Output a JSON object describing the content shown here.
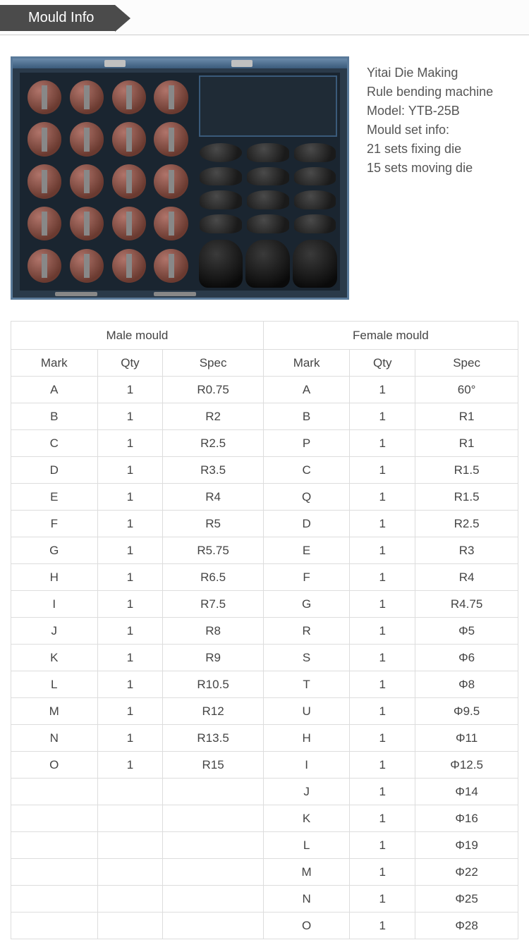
{
  "header": {
    "title": "Mould Info"
  },
  "info": {
    "line1": "Yitai Die Making",
    "line2": "Rule bending machine",
    "line3": "Model: YTB-25B",
    "line4": "Mould set info:",
    "line5": "21 sets fixing die",
    "line6": "15 sets moving die"
  },
  "table": {
    "group_male": "Male mould",
    "group_female": "Female mould",
    "col_mark": "Mark",
    "col_qty": "Qty",
    "col_spec": "Spec",
    "rows": [
      {
        "m_mark": "A",
        "m_qty": "1",
        "m_spec": "R0.75",
        "f_mark": "A",
        "f_qty": "1",
        "f_spec": "60°"
      },
      {
        "m_mark": "B",
        "m_qty": "1",
        "m_spec": "R2",
        "f_mark": "B",
        "f_qty": "1",
        "f_spec": "R1"
      },
      {
        "m_mark": "C",
        "m_qty": "1",
        "m_spec": "R2.5",
        "f_mark": "P",
        "f_qty": "1",
        "f_spec": "R1"
      },
      {
        "m_mark": "D",
        "m_qty": "1",
        "m_spec": "R3.5",
        "f_mark": "C",
        "f_qty": "1",
        "f_spec": "R1.5"
      },
      {
        "m_mark": "E",
        "m_qty": "1",
        "m_spec": "R4",
        "f_mark": "Q",
        "f_qty": "1",
        "f_spec": "R1.5"
      },
      {
        "m_mark": "F",
        "m_qty": "1",
        "m_spec": "R5",
        "f_mark": "D",
        "f_qty": "1",
        "f_spec": "R2.5"
      },
      {
        "m_mark": "G",
        "m_qty": "1",
        "m_spec": "R5.75",
        "f_mark": "E",
        "f_qty": "1",
        "f_spec": "R3"
      },
      {
        "m_mark": "H",
        "m_qty": "1",
        "m_spec": "R6.5",
        "f_mark": "F",
        "f_qty": "1",
        "f_spec": "R4"
      },
      {
        "m_mark": "I",
        "m_qty": "1",
        "m_spec": "R7.5",
        "f_mark": "G",
        "f_qty": "1",
        "f_spec": "R4.75"
      },
      {
        "m_mark": "J",
        "m_qty": "1",
        "m_spec": "R8",
        "f_mark": "R",
        "f_qty": "1",
        "f_spec": "Φ5"
      },
      {
        "m_mark": "K",
        "m_qty": "1",
        "m_spec": "R9",
        "f_mark": "S",
        "f_qty": "1",
        "f_spec": "Φ6"
      },
      {
        "m_mark": "L",
        "m_qty": "1",
        "m_spec": "R10.5",
        "f_mark": "T",
        "f_qty": "1",
        "f_spec": "Φ8"
      },
      {
        "m_mark": "M",
        "m_qty": "1",
        "m_spec": "R12",
        "f_mark": "U",
        "f_qty": "1",
        "f_spec": "Φ9.5"
      },
      {
        "m_mark": "N",
        "m_qty": "1",
        "m_spec": "R13.5",
        "f_mark": "H",
        "f_qty": "1",
        "f_spec": "Φ11"
      },
      {
        "m_mark": "O",
        "m_qty": "1",
        "m_spec": "R15",
        "f_mark": "I",
        "f_qty": "1",
        "f_spec": "Φ12.5"
      },
      {
        "m_mark": "",
        "m_qty": "",
        "m_spec": "",
        "f_mark": "J",
        "f_qty": "1",
        "f_spec": "Φ14"
      },
      {
        "m_mark": "",
        "m_qty": "",
        "m_spec": "",
        "f_mark": "K",
        "f_qty": "1",
        "f_spec": "Φ16"
      },
      {
        "m_mark": "",
        "m_qty": "",
        "m_spec": "",
        "f_mark": "L",
        "f_qty": "1",
        "f_spec": "Φ19"
      },
      {
        "m_mark": "",
        "m_qty": "",
        "m_spec": "",
        "f_mark": "M",
        "f_qty": "1",
        "f_spec": "Φ22"
      },
      {
        "m_mark": "",
        "m_qty": "",
        "m_spec": "",
        "f_mark": "N",
        "f_qty": "1",
        "f_spec": "Φ25"
      },
      {
        "m_mark": "",
        "m_qty": "",
        "m_spec": "",
        "f_mark": "O",
        "f_qty": "1",
        "f_spec": "Φ28"
      }
    ]
  }
}
